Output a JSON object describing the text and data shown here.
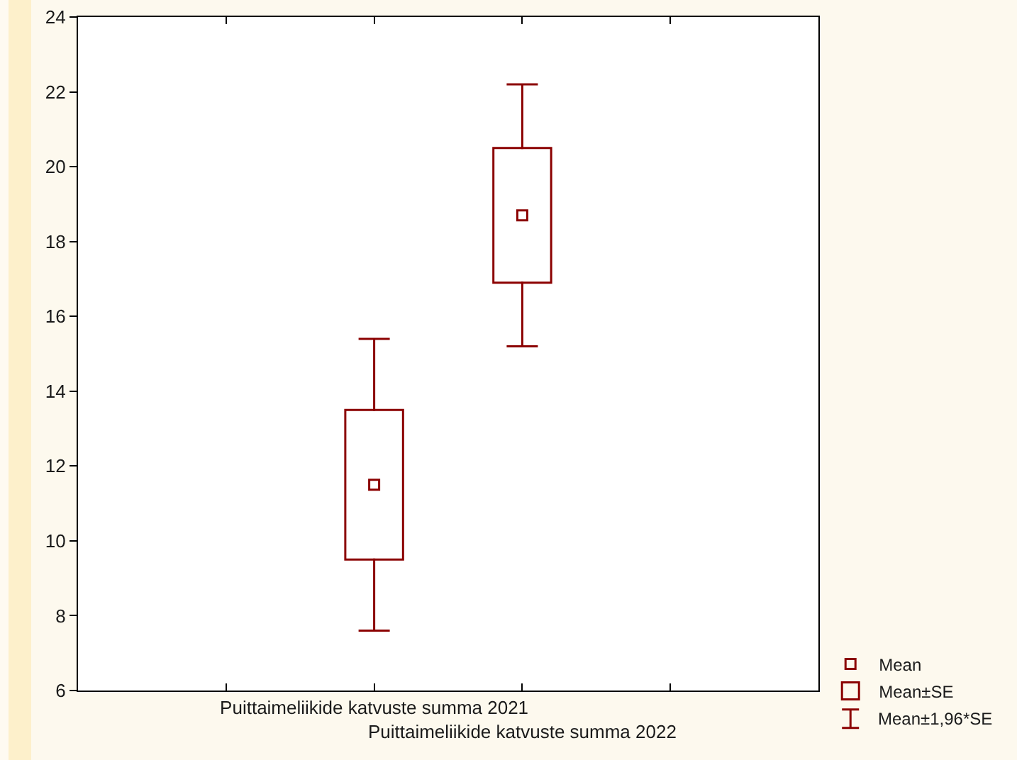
{
  "chart_data": {
    "type": "bar",
    "categories": [
      null,
      "Puittaimeliikide katvuste summa 2021",
      "Puittaimeliikide katvuste summa 2022",
      null
    ],
    "series": [
      {
        "name": "Mean",
        "type": "scatter",
        "marker": "square",
        "color": "#8b0000",
        "values": [
          null,
          11.5,
          18.7,
          null
        ],
        "errors": [
          null,
          3.9,
          3.5,
          null
        ]
      },
      {
        "name": "Mean±SE",
        "color": "#8b0000",
        "base": [
          null,
          9.5,
          16.9,
          null
        ],
        "values": [
          null,
          4.0,
          3.6,
          null
        ]
      }
    ],
    "ylim": [
      6,
      24
    ],
    "yticks": [
      6,
      8,
      10,
      12,
      14,
      16,
      18,
      20,
      22,
      24
    ],
    "legend": "bottom right",
    "annotations": [
      "Mean±1,96*SE"
    ]
  }
}
